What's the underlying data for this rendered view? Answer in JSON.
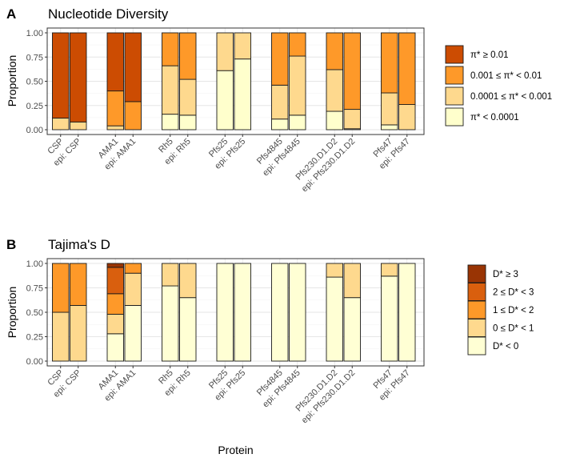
{
  "chart_data": [
    {
      "type": "bar",
      "panel_label": "A",
      "title": "Nucleotide Diversity",
      "ylabel": "Proportion",
      "xlabel": "",
      "ylim": [
        0,
        1
      ],
      "yticks": [
        "0.00",
        "0.25",
        "0.50",
        "0.75",
        "1.00"
      ],
      "categories": [
        "CSP",
        "epi: CSP",
        "AMA1",
        "epi: AMA1",
        "Rh5",
        "epi: Rh5",
        "Pfs25",
        "epi: Pfs25",
        "Pfs4845",
        "epi: Pfs4845",
        "Pfs230.D1.D2",
        "epi: Pfs230.D1.D2",
        "Pfs47",
        "epi: Pfs47"
      ],
      "series": [
        {
          "name": "π* < 0.0001",
          "color": "#FFFFCC",
          "values": [
            0.0,
            0.0,
            0.0,
            0.0,
            0.16,
            0.15,
            0.61,
            0.73,
            0.11,
            0.15,
            0.19,
            0.01,
            0.05,
            0.0
          ]
        },
        {
          "name": "0.0001 ≤ π* < 0.001",
          "color": "#FED98E",
          "values": [
            0.12,
            0.08,
            0.04,
            0.0,
            0.5,
            0.37,
            0.39,
            0.27,
            0.35,
            0.61,
            0.43,
            0.2,
            0.33,
            0.26
          ]
        },
        {
          "name": "0.001 ≤ π* < 0.01",
          "color": "#FE9929",
          "values": [
            0.0,
            0.0,
            0.36,
            0.29,
            0.34,
            0.48,
            0.0,
            0.0,
            0.54,
            0.24,
            0.38,
            0.79,
            0.62,
            0.74
          ]
        },
        {
          "name": "π* ≥ 0.01",
          "color": "#CC4C02",
          "values": [
            0.88,
            0.92,
            0.6,
            0.71,
            0.0,
            0.0,
            0.0,
            0.0,
            0.0,
            0.0,
            0.0,
            0.0,
            0.0,
            0.0
          ]
        }
      ],
      "legend": {
        "placement": "right",
        "order": [
          "π* ≥ 0.01",
          "0.001 ≤ π* < 0.01",
          "0.0001 ≤ π* < 0.001",
          "π* < 0.0001"
        ]
      },
      "grid": true
    },
    {
      "type": "bar",
      "panel_label": "B",
      "title": "Tajima's D",
      "ylabel": "Proportion",
      "xlabel": "Protein",
      "ylim": [
        0,
        1
      ],
      "yticks": [
        "0.00",
        "0.25",
        "0.50",
        "0.75",
        "1.00"
      ],
      "categories": [
        "CSP",
        "epi: CSP",
        "AMA1",
        "epi: AMA1",
        "Rh5",
        "epi: Rh5",
        "Pfs25",
        "epi: Pfs25",
        "Pfs4845",
        "epi: Pfs4845",
        "Pfs230.D1.D2",
        "epi: Pfs230.D1.D2",
        "Pfs47",
        "epi: Pfs47"
      ],
      "series": [
        {
          "name": "D* < 0",
          "color": "#FFFFD4",
          "values": [
            0.0,
            0.0,
            0.28,
            0.57,
            0.77,
            0.65,
            1.0,
            1.0,
            1.0,
            1.0,
            0.86,
            0.65,
            0.87,
            1.0
          ]
        },
        {
          "name": "0 ≤ D* < 1",
          "color": "#FED98E",
          "values": [
            0.5,
            0.57,
            0.2,
            0.33,
            0.23,
            0.35,
            0.0,
            0.0,
            0.0,
            0.0,
            0.14,
            0.35,
            0.13,
            0.0
          ]
        },
        {
          "name": "1 ≤ D* < 2",
          "color": "#FE9929",
          "values": [
            0.5,
            0.43,
            0.21,
            0.1,
            0.0,
            0.0,
            0.0,
            0.0,
            0.0,
            0.0,
            0.0,
            0.0,
            0.0,
            0.0
          ]
        },
        {
          "name": "2 ≤ D* < 3",
          "color": "#D95F0E",
          "values": [
            0.0,
            0.0,
            0.27,
            0.0,
            0.0,
            0.0,
            0.0,
            0.0,
            0.0,
            0.0,
            0.0,
            0.0,
            0.0,
            0.0
          ]
        },
        {
          "name": "D* ≥ 3",
          "color": "#993404",
          "values": [
            0.0,
            0.0,
            0.04,
            0.0,
            0.0,
            0.0,
            0.0,
            0.0,
            0.0,
            0.0,
            0.0,
            0.0,
            0.0,
            0.0
          ]
        }
      ],
      "legend": {
        "placement": "right",
        "order": [
          "D* ≥ 3",
          "2 ≤ D* < 3",
          "1 ≤ D* < 2",
          "0 ≤ D* < 1",
          "D* < 0"
        ]
      },
      "grid": true
    }
  ]
}
